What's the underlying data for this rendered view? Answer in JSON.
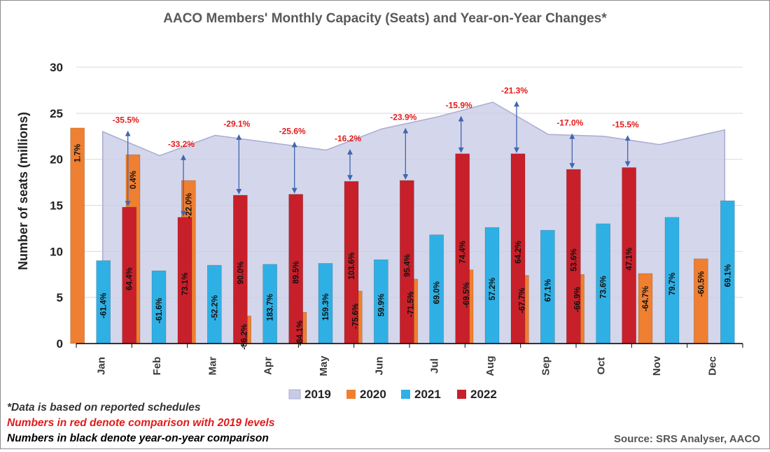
{
  "chart_data": {
    "type": "bar",
    "title": "AACO Members' Monthly Capacity (Seats) and Year-on-Year Changes*",
    "ylabel": "Number of seats (millions)",
    "xlabel": "",
    "ylim": [
      0,
      30
    ],
    "yticks": [
      0,
      5,
      10,
      15,
      20,
      25,
      30
    ],
    "grid": "horizontal",
    "legend_position": "bottom",
    "categories": [
      "Jan",
      "Feb",
      "Mar",
      "Apr",
      "May",
      "Jun",
      "Jul",
      "Aug",
      "Sep",
      "Oct",
      "Nov",
      "Dec"
    ],
    "series": [
      {
        "name": "2019",
        "type": "area",
        "color": "#c8cbe6",
        "values": [
          23.0,
          20.4,
          22.6,
          21.8,
          21.0,
          23.3,
          24.6,
          26.2,
          22.7,
          22.5,
          21.6,
          23.2
        ]
      },
      {
        "name": "2020",
        "type": "bar",
        "color": "#ef7f31",
        "values": [
          23.4,
          20.5,
          17.7,
          3.0,
          3.4,
          5.7,
          7.0,
          8.0,
          7.4,
          7.5,
          7.6,
          9.2
        ],
        "labels": [
          "1.7%",
          "0.4%",
          "-22.0%",
          "-86.2%",
          "-84.1%",
          "-75.6%",
          "-71.5%",
          "-69.5%",
          "-67.7%",
          "-66.9%",
          "-64.7%",
          "-60.5%"
        ]
      },
      {
        "name": "2021",
        "type": "bar",
        "color": "#2fb0e5",
        "values": [
          9.0,
          7.9,
          8.5,
          8.6,
          8.7,
          9.1,
          11.8,
          12.6,
          12.3,
          13.0,
          13.7,
          15.5
        ],
        "labels": [
          "-61.4%",
          "-61.6%",
          "-52.2%",
          "183.7%",
          "159.3%",
          "59.9%",
          "69.0%",
          "57.2%",
          "67.1%",
          "73.6%",
          "79.7%",
          "69.1%"
        ]
      },
      {
        "name": "2022",
        "type": "bar",
        "color": "#c8202a",
        "values": [
          14.8,
          13.7,
          16.1,
          16.2,
          17.6,
          17.7,
          20.6,
          20.6,
          18.9,
          19.1,
          null,
          null
        ],
        "labels": [
          "64.4%",
          "73.1%",
          "90.0%",
          "89.5%",
          "103.6%",
          "95.4%",
          "74.4%",
          "64.2%",
          "53.6%",
          "47.1%",
          "",
          ""
        ]
      }
    ],
    "comparison_2022_vs_2019": [
      "-35.5%",
      "-33.2%",
      "-29.1%",
      "-25.6%",
      "-16.2%",
      "-23.9%",
      "-15.9%",
      "-21.3%",
      "-17.0%",
      "-15.5%",
      "",
      ""
    ],
    "notes": [
      {
        "text": "*Data is based on reported schedules",
        "color": "#333333"
      },
      {
        "text": "Numbers in red denote comparison with 2019 levels",
        "color": "#e21b1b"
      },
      {
        "text": "Numbers in black denote year-on-year comparison",
        "color": "#000000"
      }
    ],
    "source": "Source: SRS Analyser, AACO"
  }
}
